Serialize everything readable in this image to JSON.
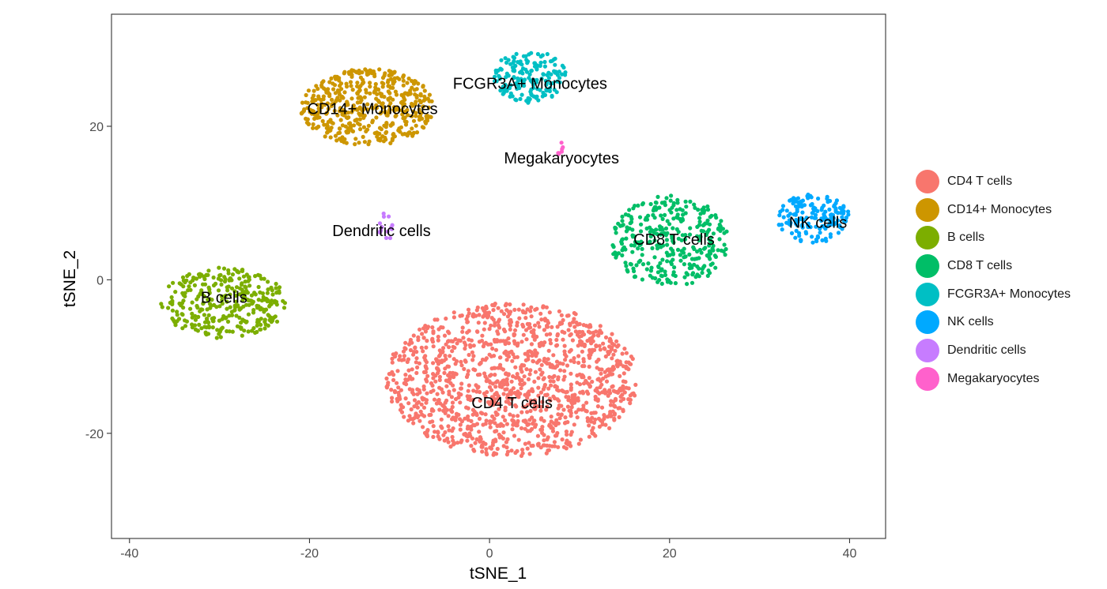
{
  "chart_data": {
    "type": "scatter",
    "title": "",
    "xlabel": "tSNE_1",
    "ylabel": "tSNE_2",
    "xlim": [
      -42,
      44
    ],
    "ylim": [
      -33.7,
      34.6
    ],
    "xticks": [
      -40,
      -20,
      0,
      20,
      40
    ],
    "yticks": [
      -20,
      0,
      20
    ],
    "grid": false,
    "legend_position": "right",
    "series": [
      {
        "name": "CD4 T cells",
        "color": "#F8766D",
        "n": 1300,
        "center": [
          2.5,
          -13
        ],
        "spread": [
          14,
          10
        ],
        "label": "CD4 T cells",
        "label_pos": [
          2.5,
          -16
        ]
      },
      {
        "name": "CD14+ Monocytes",
        "color": "#CD9600",
        "n": 480,
        "center": [
          -13.5,
          22.5
        ],
        "spread": [
          7.5,
          5
        ],
        "label": "CD14+ Monocytes",
        "label_pos": [
          -13,
          22.3
        ]
      },
      {
        "name": "B cells",
        "color": "#7CAE00",
        "n": 340,
        "center": [
          -29.5,
          -3
        ],
        "spread": [
          7,
          4.6
        ],
        "label": "B cells",
        "label_pos": [
          -29.5,
          -2.3
        ]
      },
      {
        "name": "CD8 T cells",
        "color": "#00BE67",
        "n": 340,
        "center": [
          20,
          5
        ],
        "spread": [
          6.5,
          6
        ],
        "label": "CD8 T cells",
        "label_pos": [
          20.5,
          5.3
        ]
      },
      {
        "name": "FCGR3A+ Monocytes",
        "color": "#00BFC4",
        "n": 170,
        "center": [
          4.5,
          26.5
        ],
        "spread": [
          4,
          3.5
        ],
        "label": "FCGR3A+ Monocytes",
        "label_pos": [
          4.5,
          25.6
        ]
      },
      {
        "name": "NK cells",
        "color": "#00A9FF",
        "n": 170,
        "center": [
          36,
          8
        ],
        "spread": [
          4,
          3.2
        ],
        "label": "NK cells",
        "label_pos": [
          36.5,
          7.5
        ]
      },
      {
        "name": "Dendritic cells",
        "color": "#C77CFF",
        "n": 14,
        "center": [
          -11.5,
          7.2
        ],
        "spread": [
          1,
          2
        ],
        "label": "Dendritic cells",
        "label_pos": [
          -12,
          6.4
        ]
      },
      {
        "name": "Megakaryocytes",
        "color": "#FF61CC",
        "n": 8,
        "center": [
          7.9,
          17
        ],
        "spread": [
          0.3,
          1.2
        ],
        "label": "Megakaryocytes",
        "label_pos": [
          8,
          15.9
        ]
      }
    ]
  }
}
